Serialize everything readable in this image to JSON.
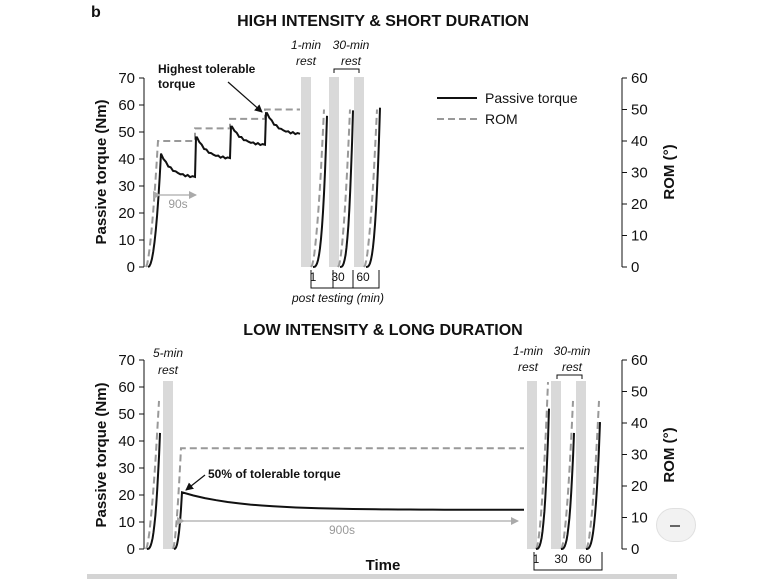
{
  "panel_letter": "b",
  "chart_data": [
    {
      "type": "line",
      "title": "HIGH INTENSITY & SHORT DURATION",
      "ylabel": "Passive torque (Nm)",
      "y2label": "ROM (°)",
      "ylim": [
        0,
        70
      ],
      "y2lim": [
        0,
        60
      ],
      "yticks": [
        "0",
        "10",
        "20",
        "30",
        "40",
        "50",
        "60",
        "70"
      ],
      "y2ticks": [
        "0",
        "10",
        "20",
        "30",
        "40",
        "50",
        "60"
      ],
      "xticks": [
        "1",
        "30",
        "60"
      ],
      "xlabel": "post testing (min)",
      "rest_labels": [
        {
          "line1": "1-min",
          "line2": "rest"
        },
        {
          "line1": "30-min",
          "line2": "rest"
        }
      ],
      "annotations": {
        "highest_line1": "Highest tolerable",
        "highest_line2": "torque",
        "duration": "90s"
      },
      "legend": {
        "torque": "Passive torque",
        "rom": "ROM",
        "position": "top-right"
      },
      "series": [
        {
          "name": "Passive torque",
          "peaks": [
            42,
            48,
            52,
            57
          ],
          "ends": [
            33,
            40,
            45,
            49
          ],
          "post": [
            56,
            58,
            59
          ]
        },
        {
          "name": "ROM",
          "steps": [
            40,
            44,
            47,
            50
          ],
          "post": [
            50,
            50,
            50
          ]
        }
      ]
    },
    {
      "type": "line",
      "title": "LOW INTENSITY & LONG DURATION",
      "ylabel": "Passive torque (Nm)",
      "y2label": "ROM (°)",
      "ylim": [
        0,
        70
      ],
      "y2lim": [
        0,
        60
      ],
      "yticks": [
        "0",
        "10",
        "20",
        "30",
        "40",
        "50",
        "60",
        "70"
      ],
      "y2ticks": [
        "0",
        "10",
        "20",
        "30",
        "40",
        "50",
        "60"
      ],
      "xticks": [
        "1",
        "30",
        "60"
      ],
      "xlabel": "Time",
      "rest_labels": [
        {
          "line1": "5-min",
          "line2": "rest"
        },
        {
          "line1": "1-min",
          "line2": "rest"
        },
        {
          "line1": "30-min",
          "line2": "rest"
        }
      ],
      "annotations": {
        "tolerable": "50% of tolerable torque",
        "duration": "900s"
      },
      "series": [
        {
          "name": "Passive torque",
          "pre_peak": 43,
          "hold_start": 21,
          "hold_end": 14.5,
          "post": [
            52,
            43,
            47
          ]
        },
        {
          "name": "ROM",
          "pre": 47,
          "hold": 32,
          "post": [
            53,
            47,
            47
          ]
        }
      ]
    }
  ]
}
